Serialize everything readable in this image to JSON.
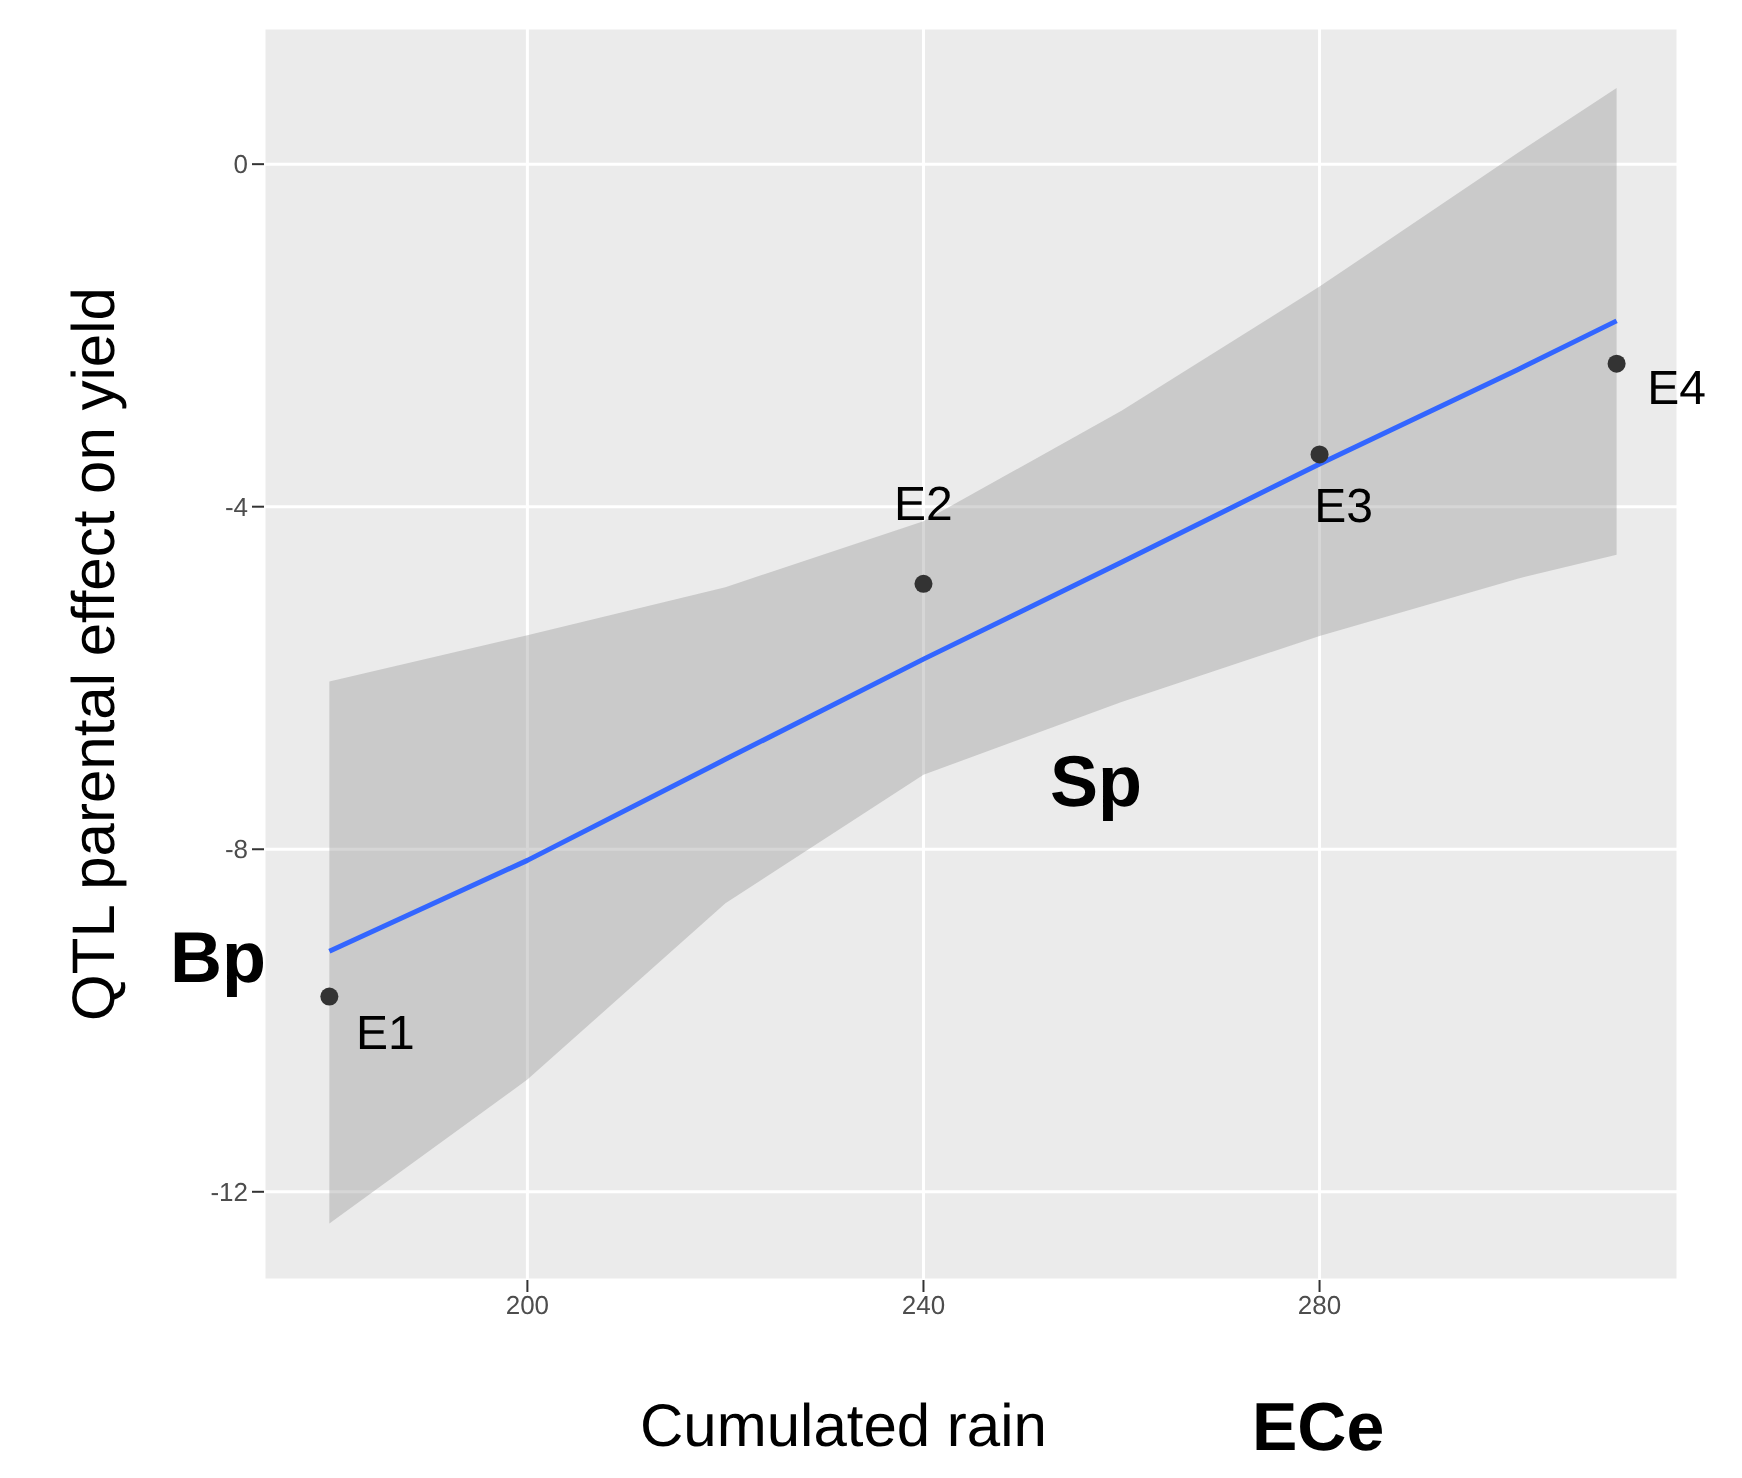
{
  "chart_data": {
    "type": "scatter",
    "xlabel": "Cumulated rain",
    "ylabel": "QTL parental effect on yield",
    "xlim": [
      173.4,
      316.2
    ],
    "ylim": [
      -13.03,
      1.59
    ],
    "xticks": [
      200,
      240,
      280
    ],
    "yticks": [
      -12,
      -8,
      -4,
      0
    ],
    "grid": true,
    "legend": false,
    "series": [
      {
        "color": "#333333",
        "marker": "circle",
        "x": [
          180,
          240,
          280,
          310
        ],
        "values": [
          -9.72,
          -4.9,
          -3.39,
          -2.33
        ]
      },
      {
        "type": "line",
        "color": "#3366ff",
        "marker": "none",
        "x": [
          180,
          200,
          220,
          240,
          260,
          280,
          300,
          310
        ],
        "values": [
          -9.19,
          -8.13,
          -6.95,
          -5.78,
          -4.65,
          -3.5,
          -2.4,
          -1.83
        ],
        "lower": [
          -12.37,
          -10.69,
          -8.63,
          -7.13,
          -6.28,
          -5.51,
          -4.84,
          -4.56
        ],
        "upper": [
          -6.04,
          -5.5,
          -4.94,
          -4.17,
          -2.88,
          -1.43,
          0.13,
          0.89
        ]
      }
    ],
    "annotations": [
      {
        "text": "E1",
        "x": 180,
        "y": -9.72
      },
      {
        "text": "E2",
        "x": 240,
        "y": -4.9
      },
      {
        "text": "E3",
        "x": 280,
        "y": -3.39
      },
      {
        "text": "E4",
        "x": 310,
        "y": -2.33
      },
      "Bp",
      "Sp",
      "ECe"
    ]
  }
}
